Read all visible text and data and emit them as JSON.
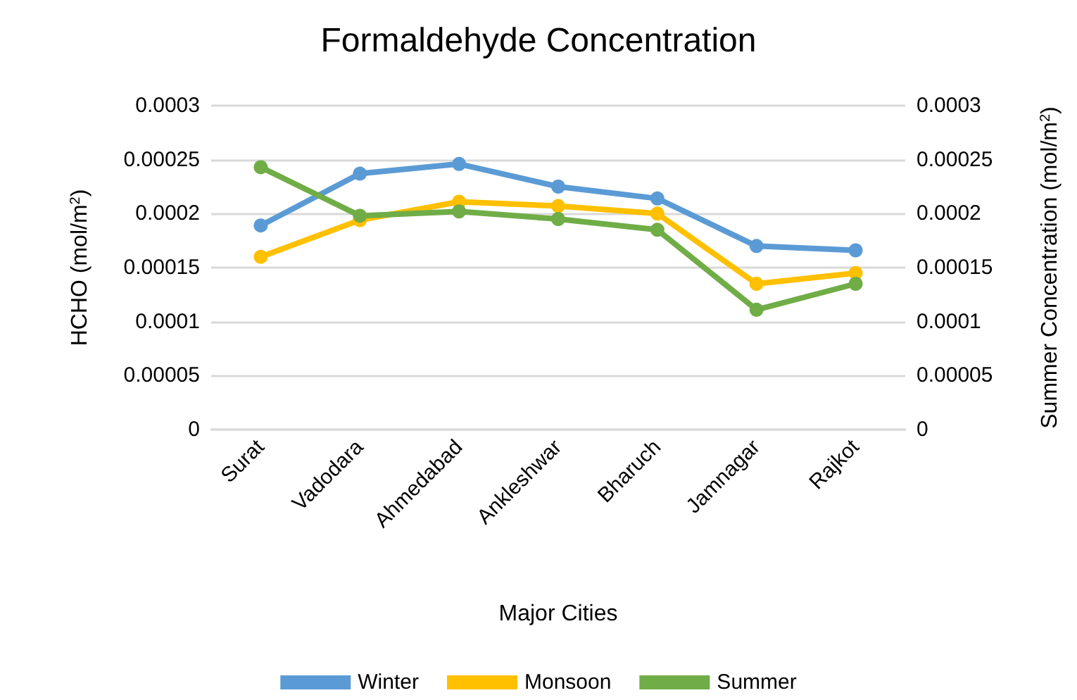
{
  "chart_data": {
    "type": "line",
    "title": "Formaldehyde Concentration",
    "xlabel": "Major Cities",
    "ylabel": "HCHO (mol/m$^{2}$)",
    "y2label": "Summer Concentration (mol/m$^{2}$)",
    "categories": [
      "Surat",
      "Vadodara",
      "Ahmedabad",
      "Ankleshwar",
      "Bharuch",
      "Jamnagar",
      "Rajkot"
    ],
    "series": [
      {
        "name": "Winter",
        "color": "#5b9bd5",
        "values": [
          0.000189,
          0.000237,
          0.000246,
          0.000225,
          0.000214,
          0.00017,
          0.000166
        ]
      },
      {
        "name": "Monsoon",
        "color": "#ffc000",
        "values": [
          0.00016,
          0.000194,
          0.000211,
          0.000207,
          0.0002,
          0.000135,
          0.000145
        ]
      },
      {
        "name": "Summer",
        "color": "#70ad47",
        "values": [
          0.000243,
          0.000198,
          0.000202,
          0.000195,
          0.000185,
          0.000111,
          0.000135
        ]
      }
    ],
    "ylim": [
      0,
      0.0003
    ],
    "yticks": [
      0,
      {
        "value": 5e-05,
        "label": "0.00005"
      },
      0.0001,
      0.00015,
      0.0002,
      0.00025,
      0.0003
    ],
    "y2lim": [
      0,
      0.0003
    ],
    "y2ticks": [
      0,
      {
        "value": 5e-05,
        "label": "0.00005"
      },
      0.0001,
      0.00015,
      0.0002,
      0.00025,
      0.0003
    ],
    "grid": "y",
    "legend": "bottom",
    "marker": "circle",
    "line_style": "solid"
  }
}
